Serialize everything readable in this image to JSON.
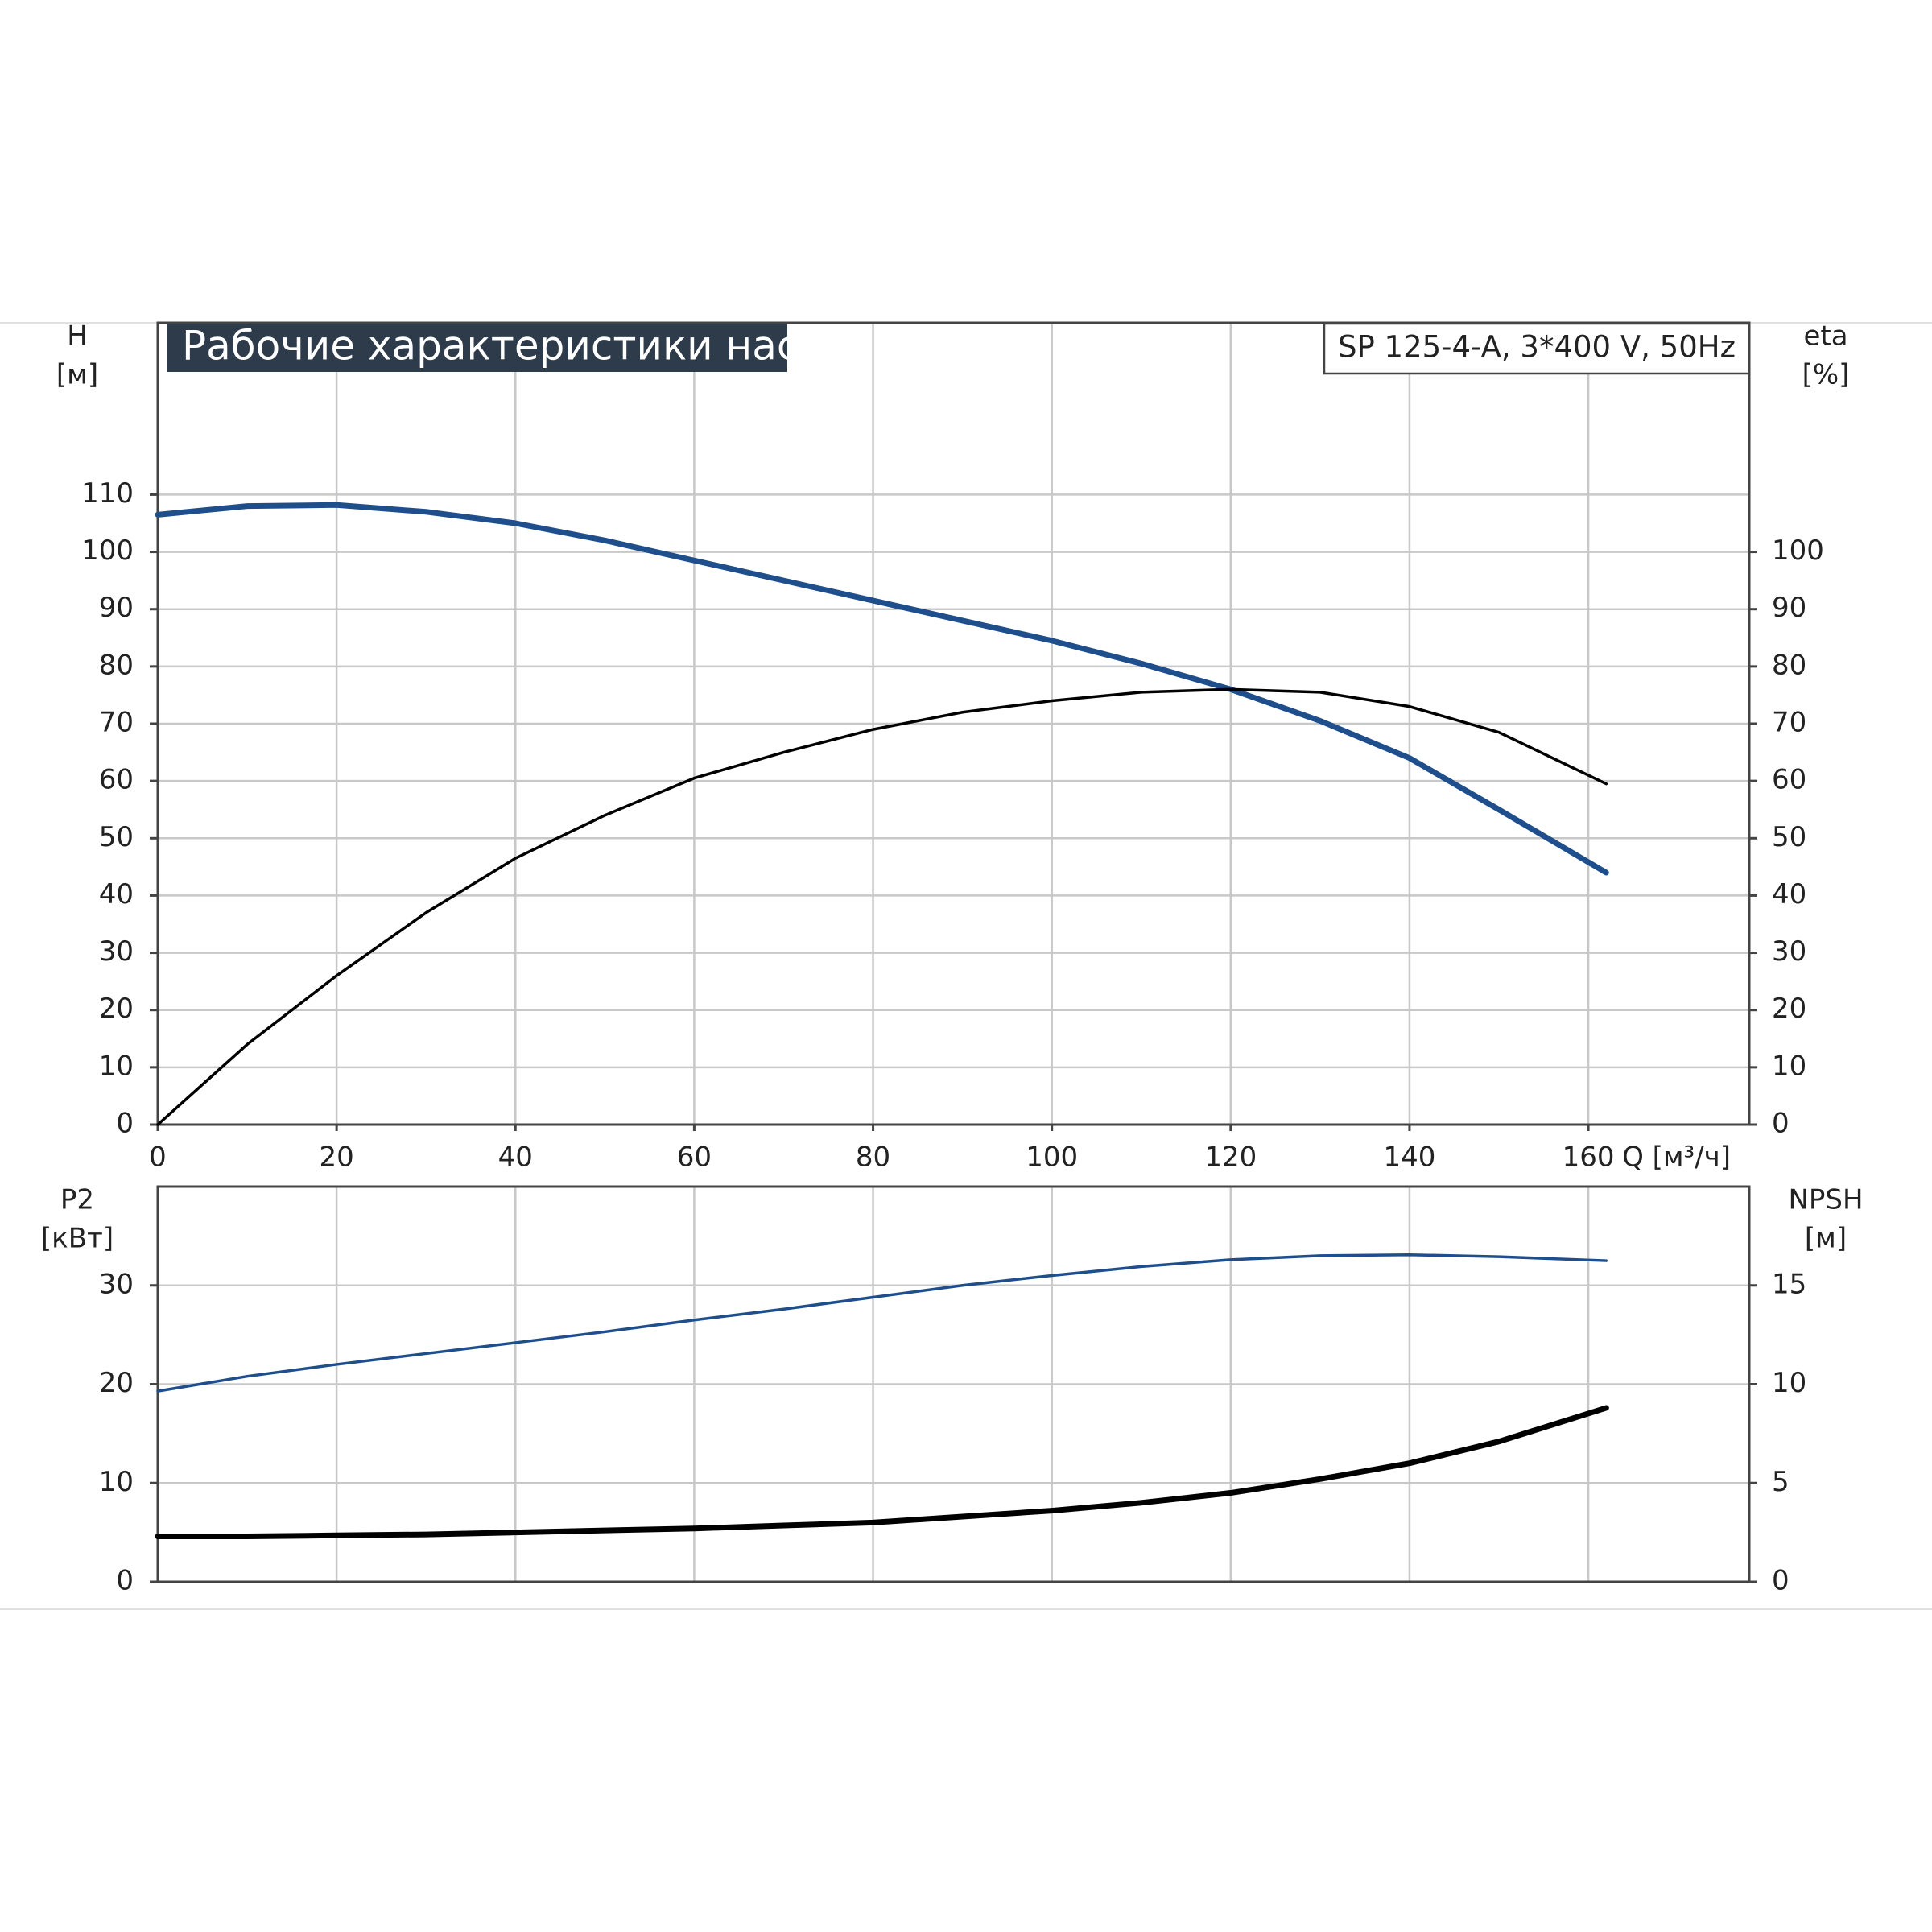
{
  "chart_data": [
    {
      "type": "line",
      "title": "Рабочие характеристики насоса",
      "legend_title": "SP 125-4-A, 3*400 V, 50Hz",
      "ylabel": [
        "H",
        "[м]"
      ],
      "y2label": [
        "eta",
        "[%]"
      ],
      "xlabel": "Q [м³/ч]",
      "x": [
        0,
        10,
        20,
        30,
        40,
        50,
        60,
        70,
        80,
        90,
        100,
        110,
        120,
        130,
        140,
        150,
        162
      ],
      "xlim": [
        0,
        178
      ],
      "xticks": [
        0,
        20,
        40,
        60,
        80,
        100,
        120,
        140,
        160
      ],
      "ylim": [
        0,
        140
      ],
      "yticks": [
        0,
        10,
        20,
        30,
        40,
        50,
        60,
        70,
        80,
        90,
        100,
        110
      ],
      "y2lim": [
        0,
        140
      ],
      "y2ticks": [
        0,
        10,
        20,
        30,
        40,
        50,
        60,
        70,
        80,
        90,
        100
      ],
      "grid": true,
      "series": [
        {
          "name": "H",
          "color": "#1f4e8c",
          "values": [
            106.5,
            108,
            108.2,
            107,
            105,
            102,
            98.5,
            95,
            91.5,
            88,
            84.5,
            80.5,
            76,
            70.5,
            64,
            55,
            44
          ]
        },
        {
          "name": "eta",
          "color": "#000000",
          "axis": "y2",
          "values": [
            0,
            14,
            26,
            37,
            46.5,
            54,
            60.5,
            65,
            69,
            72,
            74,
            75.5,
            76,
            75.5,
            73,
            68.5,
            59.5
          ]
        }
      ]
    },
    {
      "type": "line",
      "ylabel": [
        "P2",
        "[кВт]"
      ],
      "y2label": [
        "NPSH",
        "[м]"
      ],
      "x": [
        0,
        10,
        20,
        30,
        40,
        50,
        60,
        70,
        80,
        90,
        100,
        110,
        120,
        130,
        140,
        150,
        162
      ],
      "xlim": [
        0,
        178
      ],
      "xticks": [
        0,
        20,
        40,
        60,
        80,
        100,
        120,
        140,
        160
      ],
      "ylim": [
        0,
        40
      ],
      "yticks": [
        0,
        10,
        20,
        30
      ],
      "y2lim": [
        0,
        20
      ],
      "y2ticks": [
        0,
        5,
        10,
        15
      ],
      "grid": true,
      "series": [
        {
          "name": "P2",
          "color": "#1f4e8c",
          "values": [
            19.3,
            20.8,
            22,
            23.1,
            24.2,
            25.3,
            26.5,
            27.6,
            28.8,
            30,
            31,
            31.9,
            32.6,
            33,
            33.1,
            32.9,
            32.5
          ]
        },
        {
          "name": "NPSH",
          "color": "#000000",
          "axis": "y2",
          "values": [
            2.3,
            2.3,
            2.35,
            2.4,
            2.5,
            2.6,
            2.7,
            2.85,
            3.0,
            3.3,
            3.6,
            4.0,
            4.5,
            5.2,
            6.0,
            7.1,
            8.8
          ]
        }
      ]
    }
  ]
}
